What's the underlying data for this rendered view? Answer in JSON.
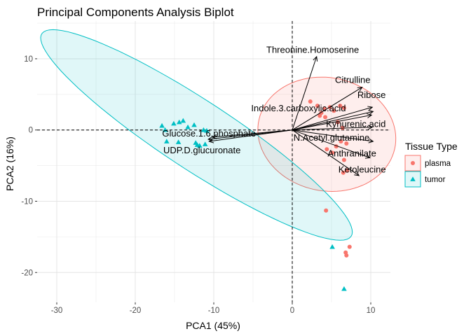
{
  "chart_data": {
    "type": "scatter",
    "title": "Principal Components Analysis Biplot",
    "xlabel": "PCA1 (45%)",
    "ylabel": "PCA2 (16%)",
    "xlim": [
      -32.5,
      12.5
    ],
    "ylim": [
      -24.2,
      15.3
    ],
    "x_ticks": [
      -30,
      -20,
      -10,
      0,
      10
    ],
    "y_ticks": [
      -20,
      -10,
      0,
      10
    ],
    "grid": true,
    "reference_lines": {
      "x": 0,
      "y": 0,
      "style": "dashed"
    },
    "legend": {
      "title": "Tissue Type",
      "position": "right",
      "items": [
        {
          "label": "plasma",
          "color": "#F8766D",
          "shape": "circle"
        },
        {
          "label": "tumor",
          "color": "#00BFC4",
          "shape": "triangle"
        }
      ]
    },
    "series": [
      {
        "name": "plasma",
        "color": "#F8766D",
        "shape": "circle",
        "points": [
          [
            2.3,
            4.0
          ],
          [
            3.2,
            3.4
          ],
          [
            4.1,
            3.0
          ],
          [
            4.8,
            3.2
          ],
          [
            3.7,
            2.4
          ],
          [
            4.2,
            1.8
          ],
          [
            3.5,
            2.0
          ],
          [
            5.3,
            2.7
          ],
          [
            6.1,
            3.4
          ],
          [
            6.6,
            3.1
          ],
          [
            5.8,
            1.1
          ],
          [
            6.4,
            0.3
          ],
          [
            6.2,
            -1.6
          ],
          [
            6.9,
            -1.9
          ],
          [
            5.6,
            -2.3
          ],
          [
            4.4,
            -2.7
          ],
          [
            5.1,
            -3.2
          ],
          [
            6.6,
            -4.2
          ],
          [
            7.0,
            -5.7
          ],
          [
            6.5,
            -6.0
          ],
          [
            4.3,
            -11.3
          ],
          [
            7.3,
            -16.4
          ],
          [
            6.9,
            -17.6
          ],
          [
            6.8,
            -17.2
          ]
        ]
      },
      {
        "name": "tumor",
        "color": "#00BFC4",
        "shape": "triangle",
        "points": [
          [
            -16.6,
            0.6
          ],
          [
            -16.2,
            0.0
          ],
          [
            -15.1,
            0.9
          ],
          [
            -14.4,
            1.1
          ],
          [
            -13.9,
            1.3
          ],
          [
            -13.3,
            0.4
          ],
          [
            -12.5,
            0.7
          ],
          [
            -16.0,
            -1.6
          ],
          [
            -14.5,
            -1.7
          ],
          [
            -12.3,
            -1.8
          ],
          [
            -12.1,
            -2.1
          ],
          [
            -11.8,
            -2.2
          ],
          [
            -11.1,
            -2.0
          ],
          [
            -10.9,
            -0.1
          ],
          [
            -11.3,
            0.0
          ],
          [
            5.1,
            -16.4
          ],
          [
            6.6,
            -22.3
          ]
        ]
      }
    ],
    "ellipses": [
      {
        "series": "plasma",
        "center": [
          4.4,
          -0.6
        ],
        "semi_axes": [
          7.9,
          8.9
        ],
        "angle_deg": -110,
        "fill": "#F8766D",
        "stroke": "#F8766D"
      },
      {
        "series": "tumor",
        "center": [
          -12.2,
          -0.7
        ],
        "semi_axes": [
          24.3,
          4.7
        ],
        "angle_deg": -36,
        "fill": "#00BFC4",
        "stroke": "#00BFC4"
      }
    ],
    "loadings": [
      {
        "label": "Threonine.Homoserine",
        "x": 3.1,
        "y": 10.3,
        "label_x": 2.6,
        "label_y": 11.2
      },
      {
        "label": "Citrulline",
        "x": 8.9,
        "y": 6.0,
        "label_x": 7.7,
        "label_y": 7.0
      },
      {
        "label": "Ribose",
        "x": 10.2,
        "y": 3.2,
        "label_x": 10.1,
        "label_y": 4.9
      },
      {
        "label": "Indole.3.carboxylic.acid",
        "x": 10.3,
        "y": 2.6,
        "label_x": 0.8,
        "label_y": 3.0
      },
      {
        "label": "",
        "x": 10.1,
        "y": 2.1,
        "label_x": 10.1,
        "label_y": 2.1
      },
      {
        "label": "Kynurenic.acid",
        "x": 10.2,
        "y": 0.4,
        "label_x": 8.1,
        "label_y": 0.8
      },
      {
        "label": "N.Acetyl.glutamine",
        "x": 10.3,
        "y": -1.6,
        "label_x": 5.0,
        "label_y": -1.1
      },
      {
        "label": "Anthranilate",
        "x": 9.9,
        "y": -3.9,
        "label_x": 7.6,
        "label_y": -3.3
      },
      {
        "label": "Ketoleucine",
        "x": 8.5,
        "y": -6.4,
        "label_x": 8.9,
        "label_y": -5.6
      },
      {
        "label": "Glucose.1.6.phosphate",
        "x": -10.7,
        "y": -1.3,
        "label_x": -10.6,
        "label_y": -0.5
      },
      {
        "label": "UDP.D.glucuronate",
        "x": -10.6,
        "y": -1.6,
        "label_x": -11.5,
        "label_y": -2.9
      },
      {
        "label": "",
        "x": -10.2,
        "y": -1.0,
        "label_x": -10.2,
        "label_y": -1.0
      }
    ]
  }
}
